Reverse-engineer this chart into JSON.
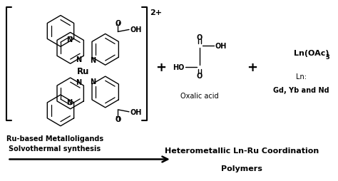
{
  "bg_color": "#ffffff",
  "fig_width": 4.74,
  "fig_height": 2.55,
  "dpi": 100,
  "charge_text": "2+",
  "label_ru": "Ru-based Metalloligands",
  "plus_sign": "+",
  "oxalic_label": "Oxalic acid",
  "ln_formula": "Ln(OAc)",
  "ln_sub": "3",
  "ln_label": "Ln:",
  "ln_elements": "Gd, Yb and Nd",
  "arrow_label": "Solvothermal synthesis",
  "product_label_line1": "Heterometallic Ln-Ru Coordination",
  "product_label_line2": "Polymers"
}
